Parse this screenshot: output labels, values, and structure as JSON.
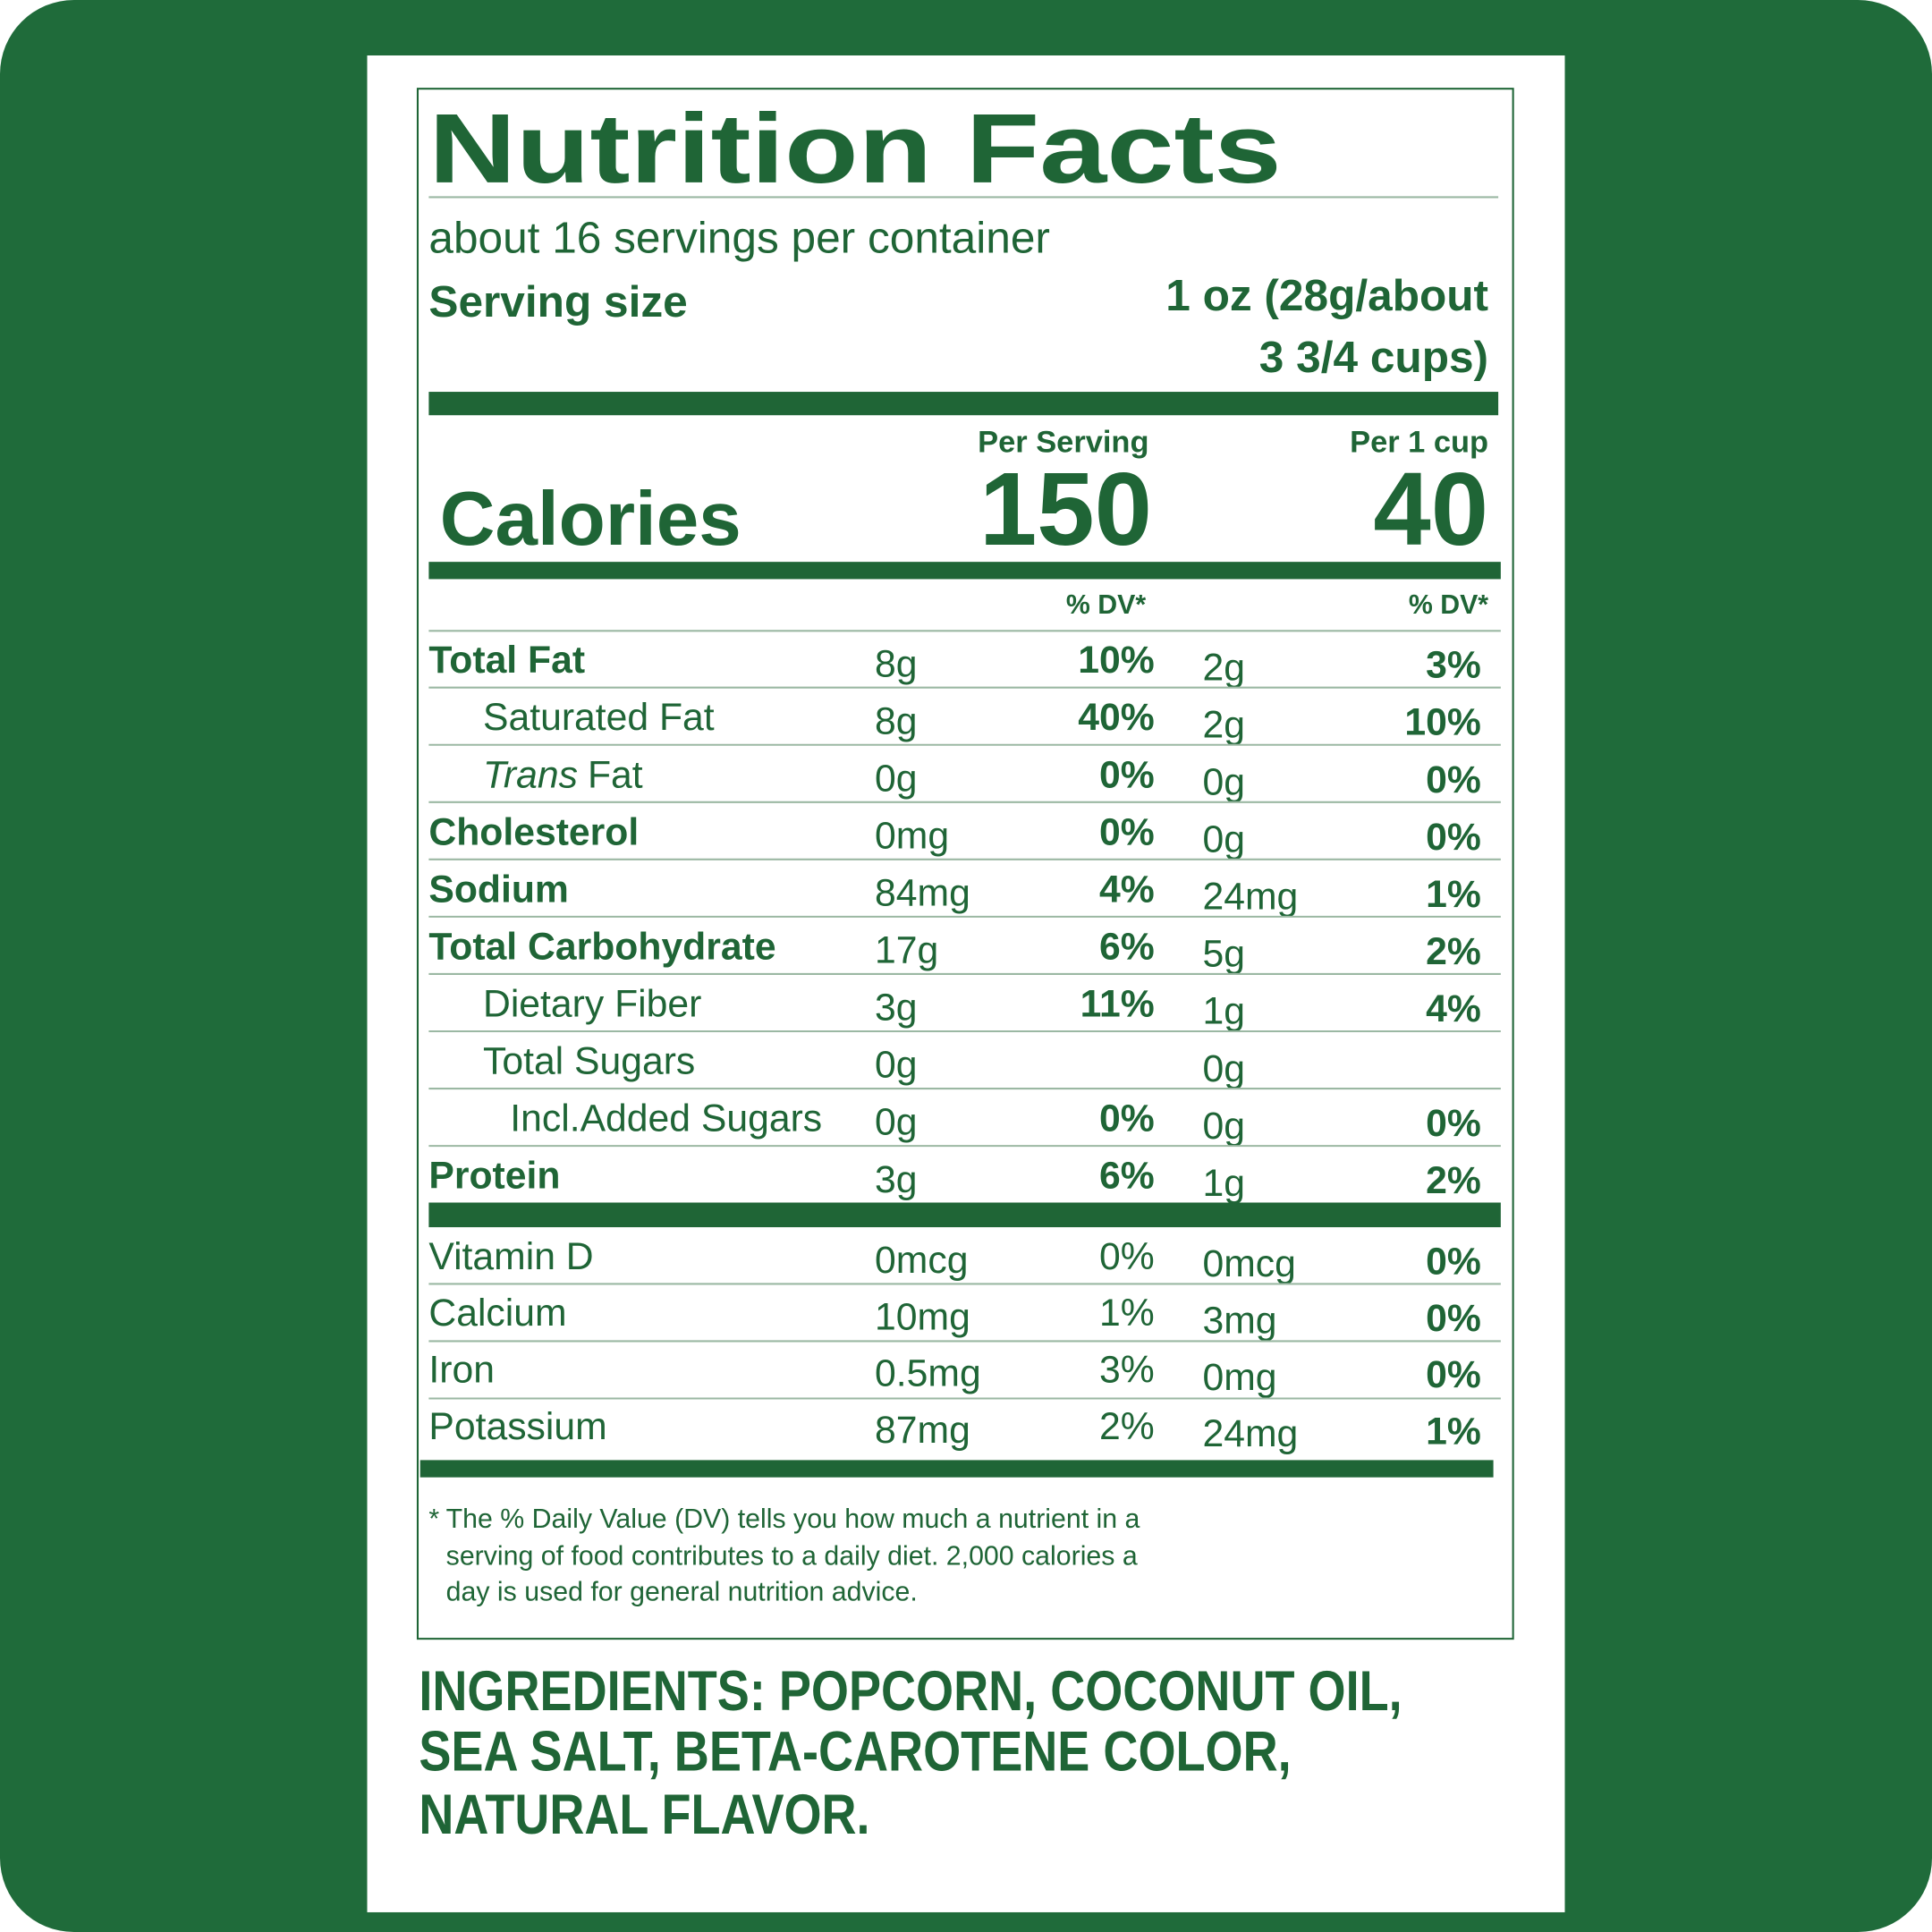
{
  "header": {
    "title": "Nutrition Facts",
    "servings": "about 16 servings per container",
    "serving_size_label": "Serving size",
    "serving_size_value": [
      "1 oz (28g/about",
      "3 3/4 cups)"
    ]
  },
  "calories": {
    "label": "Calories",
    "per_serving_label": "Per Serving",
    "per_serving": "150",
    "per_cup_label": "Per 1 cup",
    "per_cup": "40"
  },
  "dv_headers": [
    "% DV*",
    "% DV*"
  ],
  "nutrients": [
    {
      "name": "Total Fat",
      "amount": "8g",
      "dv": "10%",
      "cup_amount": "2g",
      "cup_dv": "3%"
    },
    {
      "name": "Saturated Fat",
      "amount": "8g",
      "dv": "40%",
      "cup_amount": "2g",
      "cup_dv": "10%"
    },
    {
      "name_italic": "Trans",
      "name": "Fat",
      "amount": "0g",
      "dv": "0%",
      "cup_amount": "0g",
      "cup_dv": "0%"
    },
    {
      "name": "Cholesterol",
      "amount": "0mg",
      "dv": "0%",
      "cup_amount": "0g",
      "cup_dv": "0%"
    },
    {
      "name": "Sodium",
      "amount": "84mg",
      "dv": "4%",
      "cup_amount": "24mg",
      "cup_dv": "1%"
    },
    {
      "name": "Total Carbohydrate",
      "amount": "17g",
      "dv": "6%",
      "cup_amount": "5g",
      "cup_dv": "2%"
    },
    {
      "name": "Dietary Fiber",
      "amount": "3g",
      "dv": "11%",
      "cup_amount": "1g",
      "cup_dv": "4%"
    },
    {
      "name": "Total Sugars",
      "amount": "0g",
      "cup_amount": "0g"
    },
    {
      "name": "Incl.Added Sugars",
      "amount": "0g",
      "dv": "0%",
      "cup_amount": "0g",
      "cup_dv": "0%"
    },
    {
      "name": "Protein",
      "amount": "3g",
      "dv": "6%",
      "cup_amount": "1g",
      "cup_dv": "2%"
    }
  ],
  "vitamins": [
    {
      "name": "Vitamin D",
      "amount": "0mcg",
      "dv": "0%",
      "cup_amount": "0mcg",
      "cup_dv": "0%"
    },
    {
      "name": "Calcium",
      "amount": "10mg",
      "dv": "1%",
      "cup_amount": "3mg",
      "cup_dv": "0%"
    },
    {
      "name": "Iron",
      "amount": "0.5mg",
      "dv": "3%",
      "cup_amount": "0mg",
      "cup_dv": "0%"
    },
    {
      "name": "Potassium",
      "amount": "87mg",
      "dv": "2%",
      "cup_amount": "24mg",
      "cup_dv": "1%"
    }
  ],
  "footnote": {
    "mark": "*",
    "lines": [
      "The % Daily Value (DV) tells you how much a nutrient in a",
      "serving of food contributes to a daily diet. 2,000 calories a",
      "day is used for general nutrition advice."
    ]
  },
  "ingredients": [
    "INGREDIENTS: POPCORN, COCONUT OIL,",
    "SEA SALT, BETA-CAROTENE COLOR,",
    "NATURAL FLAVOR."
  ]
}
